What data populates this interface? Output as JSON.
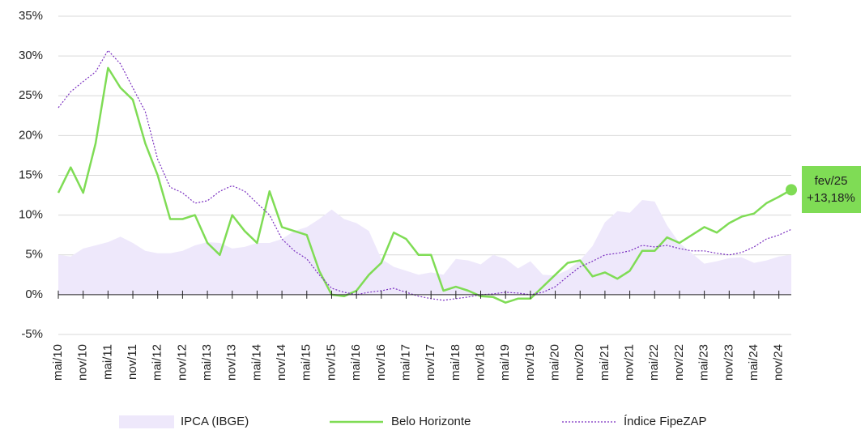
{
  "chart_data": {
    "type": "line",
    "categories": [
      "mai/10",
      null,
      "nov/10",
      null,
      "mai/11",
      null,
      "nov/11",
      null,
      "mai/12",
      null,
      "nov/12",
      null,
      "mai/13",
      null,
      "nov/13",
      null,
      "mai/14",
      null,
      "nov/14",
      null,
      "mai/15",
      null,
      "nov/15",
      null,
      "mai/16",
      null,
      "nov/16",
      null,
      "mai/17",
      null,
      "nov/17",
      null,
      "mai/18",
      null,
      "nov/18",
      null,
      "mai/19",
      null,
      "nov/19",
      null,
      "mai/20",
      null,
      "nov/20",
      null,
      "mai/21",
      null,
      "nov/21",
      null,
      "mai/22",
      null,
      "nov/22",
      null,
      "mai/23",
      null,
      "nov/23",
      null,
      "mai/24",
      null,
      "nov/24",
      null
    ],
    "series": [
      {
        "name": "IPCA (IBGE)",
        "type": "area",
        "color": "#eee8fb",
        "values": [
          5,
          4.8,
          5.8,
          6.2,
          6.6,
          7.3,
          6.5,
          5.5,
          5.2,
          5.2,
          5.5,
          6.2,
          6.6,
          6.5,
          5.8,
          6,
          6.5,
          6.5,
          7,
          8,
          8.5,
          9.5,
          10.7,
          9.5,
          9,
          8,
          4.5,
          3.5,
          3,
          2.5,
          2.8,
          2.5,
          4.5,
          4.3,
          3.8,
          5,
          4.5,
          3.3,
          4.2,
          2.5,
          2.4,
          3.1,
          4.3,
          6.1,
          9.1,
          10.5,
          10.3,
          11.9,
          11.7,
          8.7,
          6.5,
          5.2,
          3.9,
          4.2,
          4.6,
          4.7,
          4,
          4.3,
          4.8,
          5
        ]
      },
      {
        "name": "Belo Horizonte",
        "type": "line",
        "color": "#7fdc55",
        "values": [
          12.8,
          16,
          12.8,
          19,
          28.5,
          26,
          24.5,
          19,
          15,
          9.5,
          9.5,
          10,
          6.5,
          5,
          10,
          8,
          6.5,
          13,
          8.5,
          8,
          7.5,
          3,
          0,
          -0.2,
          0.5,
          2.5,
          4,
          7.8,
          7,
          5,
          5,
          0.5,
          1,
          0.5,
          -0.2,
          -0.3,
          -1,
          -0.5,
          -0.5,
          1,
          2.5,
          4,
          4.3,
          2.3,
          2.8,
          2,
          3,
          5.5,
          5.5,
          7.2,
          6.5,
          7.5,
          8.5,
          7.8,
          9,
          9.8,
          10.2,
          11.5,
          12.3,
          13.18
        ]
      },
      {
        "name": "Índice FipeZAP",
        "type": "line",
        "dash": true,
        "color": "#7a2fc0",
        "values": [
          23.5,
          25.5,
          26.8,
          28,
          30.7,
          29,
          26,
          23,
          17,
          13.5,
          12.8,
          11.5,
          11.8,
          13,
          13.7,
          13,
          11.5,
          10,
          7,
          5.5,
          4.5,
          2.5,
          0.8,
          0.3,
          0,
          0.3,
          0.5,
          0.8,
          0.3,
          -0.2,
          -0.5,
          -0.7,
          -0.5,
          -0.3,
          0,
          0.1,
          0.3,
          0.2,
          0,
          0.3,
          1,
          2.3,
          3.5,
          4.2,
          5,
          5.2,
          5.5,
          6.2,
          6,
          6.2,
          5.8,
          5.5,
          5.5,
          5.2,
          5,
          5.3,
          6,
          7,
          7.5,
          8.2
        ]
      }
    ],
    "ylim": [
      -5,
      35
    ],
    "yticks": [
      {
        "value": -5,
        "label": "-5%"
      },
      {
        "value": 0,
        "label": "0%"
      },
      {
        "value": 5,
        "label": "5%"
      },
      {
        "value": 10,
        "label": "10%"
      },
      {
        "value": 15,
        "label": "15%"
      },
      {
        "value": 20,
        "label": "20%"
      },
      {
        "value": 25,
        "label": "25%"
      },
      {
        "value": 30,
        "label": "30%"
      },
      {
        "value": 35,
        "label": "35%"
      }
    ],
    "grid": true,
    "legend": "bottom",
    "annotation": {
      "series": 1,
      "date": "fev/25",
      "label": "+13,18%"
    }
  }
}
